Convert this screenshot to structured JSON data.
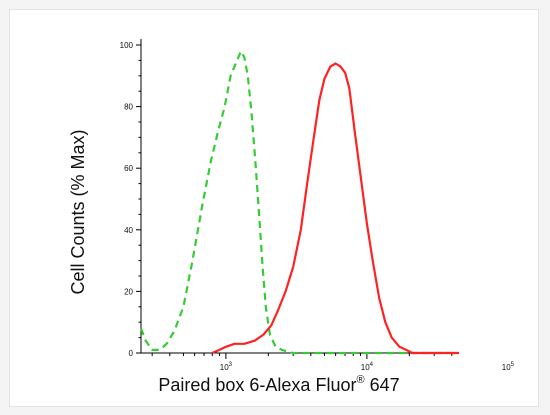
{
  "chart_data": {
    "type": "line",
    "xscale": "log",
    "xlim": [
      250,
      45000
    ],
    "ylim": [
      0,
      100
    ],
    "xlabel": "Paired box 6-Alexa Fluor",
    "xlabel_superscript": "®",
    "xlabel_suffix": " 647",
    "ylabel": "Cell Counts (% Max)",
    "y_ticks": [
      0,
      20,
      40,
      60,
      80,
      100
    ],
    "y_tick_labels": [
      "0",
      "20",
      "40",
      "60",
      "80",
      "100"
    ],
    "x_major_ticks": [
      1000,
      10000,
      100000
    ],
    "x_tick_base": "10",
    "x_tick_exponents": [
      "3",
      "4",
      "5"
    ],
    "grid": false,
    "series": [
      {
        "color": "#33cc33",
        "dash": "dashed",
        "points": [
          [
            250,
            8
          ],
          [
            270,
            4
          ],
          [
            300,
            1
          ],
          [
            340,
            1
          ],
          [
            380,
            3
          ],
          [
            430,
            7
          ],
          [
            500,
            15
          ],
          [
            580,
            30
          ],
          [
            680,
            48
          ],
          [
            780,
            62
          ],
          [
            880,
            72
          ],
          [
            980,
            80
          ],
          [
            1080,
            90
          ],
          [
            1200,
            95
          ],
          [
            1280,
            98
          ],
          [
            1350,
            96
          ],
          [
            1430,
            90
          ],
          [
            1520,
            78
          ],
          [
            1620,
            62
          ],
          [
            1720,
            45
          ],
          [
            1820,
            28
          ],
          [
            1920,
            15
          ],
          [
            2050,
            6
          ],
          [
            2250,
            2
          ],
          [
            2500,
            1
          ],
          [
            3000,
            0
          ],
          [
            45000,
            0
          ]
        ]
      },
      {
        "color": "#ff2222",
        "dash": "solid",
        "points": [
          [
            800,
            0
          ],
          [
            900,
            1
          ],
          [
            1000,
            2
          ],
          [
            1150,
            3
          ],
          [
            1350,
            3
          ],
          [
            1600,
            4
          ],
          [
            1850,
            6
          ],
          [
            2100,
            9
          ],
          [
            2350,
            14
          ],
          [
            2650,
            20
          ],
          [
            3000,
            28
          ],
          [
            3400,
            40
          ],
          [
            3800,
            56
          ],
          [
            4200,
            70
          ],
          [
            4600,
            82
          ],
          [
            5000,
            89
          ],
          [
            5500,
            93
          ],
          [
            6000,
            94
          ],
          [
            6500,
            93
          ],
          [
            7000,
            91
          ],
          [
            7500,
            86
          ],
          [
            8200,
            72
          ],
          [
            9000,
            58
          ],
          [
            10000,
            42
          ],
          [
            11000,
            30
          ],
          [
            12200,
            18
          ],
          [
            13500,
            10
          ],
          [
            15000,
            5
          ],
          [
            17000,
            2
          ],
          [
            19000,
            1
          ],
          [
            21000,
            0
          ],
          [
            24000,
            0
          ],
          [
            30000,
            0
          ],
          [
            45000,
            0
          ]
        ]
      }
    ]
  }
}
